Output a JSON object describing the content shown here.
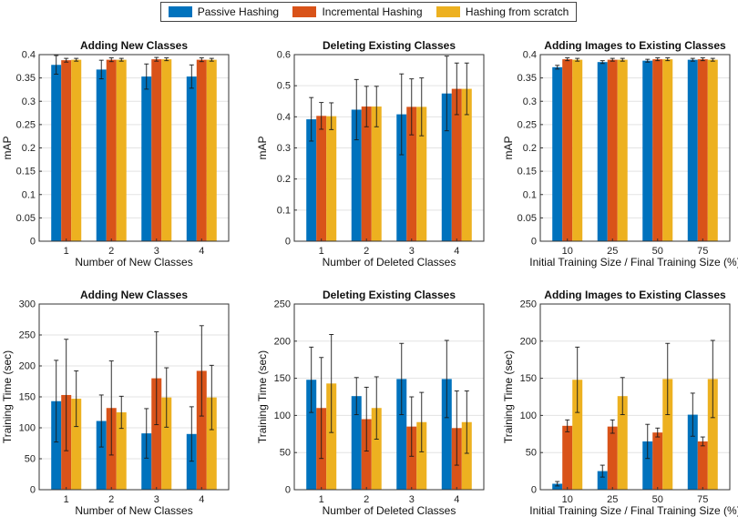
{
  "legend": {
    "entries": [
      "Passive Hashing",
      "Incremental Hashing",
      "Hashing from scratch"
    ],
    "colors": [
      "#0072BD",
      "#D95319",
      "#EDB120"
    ]
  },
  "chart_data": [
    {
      "type": "bar",
      "title": "Adding New Classes",
      "xlabel": "Number of New Classes",
      "ylabel": "mAP",
      "categories": [
        "1",
        "2",
        "3",
        "4"
      ],
      "ylim": [
        0,
        0.4
      ],
      "yticks": [
        0,
        0.05,
        0.1,
        0.15,
        0.2,
        0.25,
        0.3,
        0.35,
        0.4
      ],
      "ytick_labels": [
        "0",
        "0.05",
        "0.1",
        "0.15",
        "0.2",
        "0.25",
        "0.3",
        "0.35",
        "0.4"
      ],
      "grid": true,
      "series": [
        {
          "name": "Passive Hashing",
          "values": [
            0.378,
            0.368,
            0.353,
            0.353
          ],
          "errors": [
            0.02,
            0.02,
            0.027,
            0.025
          ]
        },
        {
          "name": "Incremental Hashing",
          "values": [
            0.388,
            0.389,
            0.39,
            0.389
          ],
          "errors": [
            0.004,
            0.004,
            0.004,
            0.004
          ]
        },
        {
          "name": "Hashing from scratch",
          "values": [
            0.389,
            0.389,
            0.39,
            0.389
          ],
          "errors": [
            0.003,
            0.003,
            0.003,
            0.003
          ]
        }
      ]
    },
    {
      "type": "bar",
      "title": "Deleting Existing Classes",
      "xlabel": "Number of Deleted Classes",
      "ylabel": "mAP",
      "categories": [
        "1",
        "2",
        "3",
        "4"
      ],
      "ylim": [
        0,
        0.6
      ],
      "yticks": [
        0,
        0.1,
        0.2,
        0.3,
        0.4,
        0.5,
        0.6
      ],
      "ytick_labels": [
        "0",
        "0.1",
        "0.2",
        "0.3",
        "0.4",
        "0.5",
        "0.6"
      ],
      "grid": true,
      "series": [
        {
          "name": "Passive Hashing",
          "values": [
            0.392,
            0.423,
            0.408,
            0.475
          ],
          "errors": [
            0.07,
            0.097,
            0.13,
            0.12
          ]
        },
        {
          "name": "Incremental Hashing",
          "values": [
            0.403,
            0.433,
            0.432,
            0.49
          ],
          "errors": [
            0.043,
            0.065,
            0.09,
            0.083
          ]
        },
        {
          "name": "Hashing from scratch",
          "values": [
            0.402,
            0.433,
            0.432,
            0.49
          ],
          "errors": [
            0.043,
            0.065,
            0.093,
            0.083
          ]
        }
      ]
    },
    {
      "type": "bar",
      "title": "Adding Images to Existing Classes",
      "xlabel": "Initial Training Size / Final Training Size (%)",
      "ylabel": "mAP",
      "categories": [
        "10",
        "25",
        "50",
        "75"
      ],
      "ylim": [
        0,
        0.4
      ],
      "yticks": [
        0,
        0.05,
        0.1,
        0.15,
        0.2,
        0.25,
        0.3,
        0.35,
        0.4
      ],
      "ytick_labels": [
        "0",
        "0.05",
        "0.1",
        "0.15",
        "0.2",
        "0.25",
        "0.3",
        "0.35",
        "0.4"
      ],
      "grid": true,
      "series": [
        {
          "name": "Passive Hashing",
          "values": [
            0.373,
            0.384,
            0.387,
            0.389
          ],
          "errors": [
            0.004,
            0.003,
            0.003,
            0.003
          ]
        },
        {
          "name": "Incremental Hashing",
          "values": [
            0.39,
            0.389,
            0.39,
            0.39
          ],
          "errors": [
            0.003,
            0.003,
            0.003,
            0.003
          ]
        },
        {
          "name": "Hashing from scratch",
          "values": [
            0.389,
            0.389,
            0.39,
            0.389
          ],
          "errors": [
            0.003,
            0.003,
            0.003,
            0.003
          ]
        }
      ]
    },
    {
      "type": "bar",
      "title": "Adding New Classes",
      "xlabel": "Number of New Classes",
      "ylabel": "Training Time (sec)",
      "categories": [
        "1",
        "2",
        "3",
        "4"
      ],
      "ylim": [
        0,
        300
      ],
      "yticks": [
        0,
        50,
        100,
        150,
        200,
        250,
        300
      ],
      "ytick_labels": [
        "0",
        "50",
        "100",
        "150",
        "200",
        "250",
        "300"
      ],
      "grid": true,
      "series": [
        {
          "name": "Passive Hashing",
          "values": [
            143,
            111,
            91,
            90
          ],
          "errors": [
            66,
            42,
            40,
            44
          ]
        },
        {
          "name": "Incremental Hashing",
          "values": [
            153,
            132,
            180,
            192
          ],
          "errors": [
            90,
            76,
            75,
            73
          ]
        },
        {
          "name": "Hashing from scratch",
          "values": [
            147,
            125,
            149,
            149
          ],
          "errors": [
            45,
            26,
            48,
            52
          ]
        }
      ]
    },
    {
      "type": "bar",
      "title": "Deleting Existing Classes",
      "xlabel": "Number of Deleted Classes",
      "ylabel": "Training Time (sec)",
      "categories": [
        "1",
        "2",
        "3",
        "4"
      ],
      "ylim": [
        0,
        250
      ],
      "yticks": [
        0,
        50,
        100,
        150,
        200,
        250
      ],
      "ytick_labels": [
        "0",
        "50",
        "100",
        "150",
        "200",
        "250"
      ],
      "grid": true,
      "series": [
        {
          "name": "Passive Hashing",
          "values": [
            148,
            126,
            149,
            149
          ],
          "errors": [
            44,
            25,
            48,
            52
          ]
        },
        {
          "name": "Incremental Hashing",
          "values": [
            110,
            95,
            85,
            83
          ],
          "errors": [
            68,
            43,
            40,
            50
          ]
        },
        {
          "name": "Hashing from scratch",
          "values": [
            143,
            110,
            91,
            91
          ],
          "errors": [
            66,
            42,
            40,
            42
          ]
        }
      ]
    },
    {
      "type": "bar",
      "title": "Adding Images to Existing Classes",
      "xlabel": "Initial Training Size / Final Training Size (%)",
      "ylabel": "Training Time (sec)",
      "categories": [
        "10",
        "25",
        "50",
        "75"
      ],
      "ylim": [
        0,
        250
      ],
      "yticks": [
        0,
        50,
        100,
        150,
        200,
        250
      ],
      "ytick_labels": [
        "0",
        "50",
        "100",
        "150",
        "200",
        "250"
      ],
      "grid": true,
      "series": [
        {
          "name": "Passive Hashing",
          "values": [
            8,
            25,
            65,
            101
          ],
          "errors": [
            3,
            8,
            23,
            29
          ]
        },
        {
          "name": "Incremental Hashing",
          "values": [
            86,
            85,
            77,
            65
          ],
          "errors": [
            8,
            9,
            6,
            6
          ]
        },
        {
          "name": "Hashing from scratch",
          "values": [
            148,
            126,
            149,
            149
          ],
          "errors": [
            44,
            25,
            48,
            52
          ]
        }
      ]
    }
  ]
}
